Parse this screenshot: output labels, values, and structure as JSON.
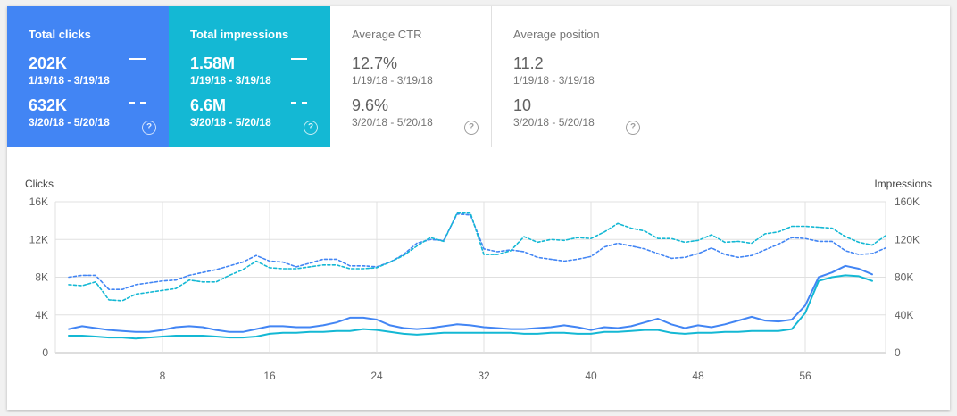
{
  "cards": [
    {
      "key": "clicks",
      "label": "Total clicks",
      "value1": "202K",
      "range1": "1/19/18 - 3/19/18",
      "value2": "632K",
      "range2": "3/20/18 - 5/20/18"
    },
    {
      "key": "impr",
      "label": "Total impressions",
      "value1": "1.58M",
      "range1": "1/19/18 - 3/19/18",
      "value2": "6.6M",
      "range2": "3/20/18 - 5/20/18"
    },
    {
      "key": "ctr",
      "label": "Average CTR",
      "value1": "12.7%",
      "range1": "1/19/18 - 3/19/18",
      "value2": "9.6%",
      "range2": "3/20/18 - 5/20/18"
    },
    {
      "key": "pos",
      "label": "Average position",
      "value1": "11.2",
      "range1": "1/19/18 - 3/19/18",
      "value2": "10",
      "range2": "3/20/18 - 5/20/18"
    }
  ],
  "help_glyph": "?",
  "colors": {
    "clicks": "#4285f4",
    "impressions": "#14b8d4",
    "grid": "#e0e0e0"
  },
  "chart_data": {
    "type": "line",
    "xlabel": "",
    "ylabel_left": "Clicks",
    "ylabel_right": "Impressions",
    "xlim": [
      0,
      62
    ],
    "x_ticks": [
      8,
      16,
      24,
      32,
      40,
      48,
      56
    ],
    "y_left": {
      "lim": [
        0,
        16000
      ],
      "ticks": [
        0,
        4000,
        8000,
        12000,
        16000
      ],
      "tick_labels": [
        "0",
        "4K",
        "8K",
        "12K",
        "16K"
      ]
    },
    "y_right": {
      "lim": [
        0,
        160000
      ],
      "ticks": [
        0,
        40000,
        80000,
        120000,
        160000
      ],
      "tick_labels": [
        "0",
        "40K",
        "80K",
        "120K",
        "160K"
      ]
    },
    "grid": true,
    "x_start": 1,
    "series": [
      {
        "metric": "clicks",
        "range": "3/20/18 - 5/20/18",
        "axis": "left",
        "style": "solid",
        "color": "#4285f4",
        "values": [
          2500,
          2800,
          2600,
          2400,
          2300,
          2200,
          2200,
          2400,
          2700,
          2800,
          2700,
          2400,
          2200,
          2200,
          2500,
          2800,
          2800,
          2700,
          2700,
          2900,
          3200,
          3700,
          3700,
          3500,
          2900,
          2600,
          2500,
          2600,
          2800,
          3000,
          2900,
          2700,
          2600,
          2500,
          2500,
          2600,
          2700,
          2900,
          2700,
          2400,
          2700,
          2600,
          2800,
          3200,
          3600,
          3000,
          2600,
          2900,
          2700,
          3000,
          3400,
          3800,
          3400,
          3300,
          3500,
          5000,
          8000,
          8500,
          9200,
          8900,
          8300
        ]
      },
      {
        "metric": "impressions",
        "range": "3/20/18 - 5/20/18",
        "axis": "left",
        "style": "solid",
        "color": "#14b8d4",
        "values": [
          1800,
          1800,
          1700,
          1600,
          1600,
          1500,
          1600,
          1700,
          1800,
          1800,
          1800,
          1700,
          1600,
          1600,
          1700,
          2000,
          2100,
          2100,
          2200,
          2200,
          2300,
          2300,
          2500,
          2400,
          2200,
          2000,
          1900,
          2000,
          2100,
          2100,
          2100,
          2100,
          2100,
          2100,
          2000,
          2000,
          2100,
          2100,
          2000,
          2000,
          2200,
          2200,
          2300,
          2400,
          2400,
          2100,
          2000,
          2100,
          2100,
          2200,
          2200,
          2300,
          2300,
          2300,
          2500,
          4200,
          7600,
          8000,
          8200,
          8100,
          7600
        ]
      },
      {
        "metric": "clicks",
        "range": "1/19/18 - 3/19/18",
        "axis": "right",
        "style": "dashed",
        "color": "#4285f4",
        "values": [
          80000,
          82000,
          82000,
          67000,
          67000,
          72000,
          74000,
          76000,
          77000,
          82000,
          85000,
          88000,
          92000,
          96000,
          103000,
          97000,
          96000,
          91000,
          95000,
          99000,
          99000,
          92000,
          92000,
          91000,
          96000,
          104000,
          116000,
          120000,
          119000,
          147000,
          146000,
          110000,
          107000,
          109000,
          107000,
          101000,
          99000,
          97000,
          99000,
          102000,
          112000,
          116000,
          113000,
          110000,
          105000,
          100000,
          101000,
          105000,
          111000,
          104000,
          101000,
          103000,
          109000,
          115000,
          122000,
          121000,
          118000,
          118000,
          108000,
          104000,
          105000,
          111000
        ]
      },
      {
        "metric": "impressions",
        "range": "1/19/18 - 3/19/18",
        "axis": "right",
        "style": "dashed",
        "color": "#14b8d4",
        "values": [
          72000,
          71000,
          75000,
          56000,
          55000,
          62000,
          64000,
          66000,
          68000,
          77000,
          75000,
          75000,
          82000,
          88000,
          97000,
          90000,
          89000,
          89000,
          91000,
          93000,
          93000,
          89000,
          89000,
          90000,
          96000,
          103000,
          113000,
          122000,
          118000,
          148000,
          148000,
          104000,
          104000,
          108000,
          123000,
          117000,
          120000,
          119000,
          122000,
          121000,
          128000,
          137000,
          132000,
          129000,
          121000,
          121000,
          117000,
          119000,
          125000,
          117000,
          118000,
          116000,
          126000,
          128000,
          134000,
          134000,
          133000,
          132000,
          123000,
          117000,
          114000,
          124000
        ]
      }
    ]
  }
}
